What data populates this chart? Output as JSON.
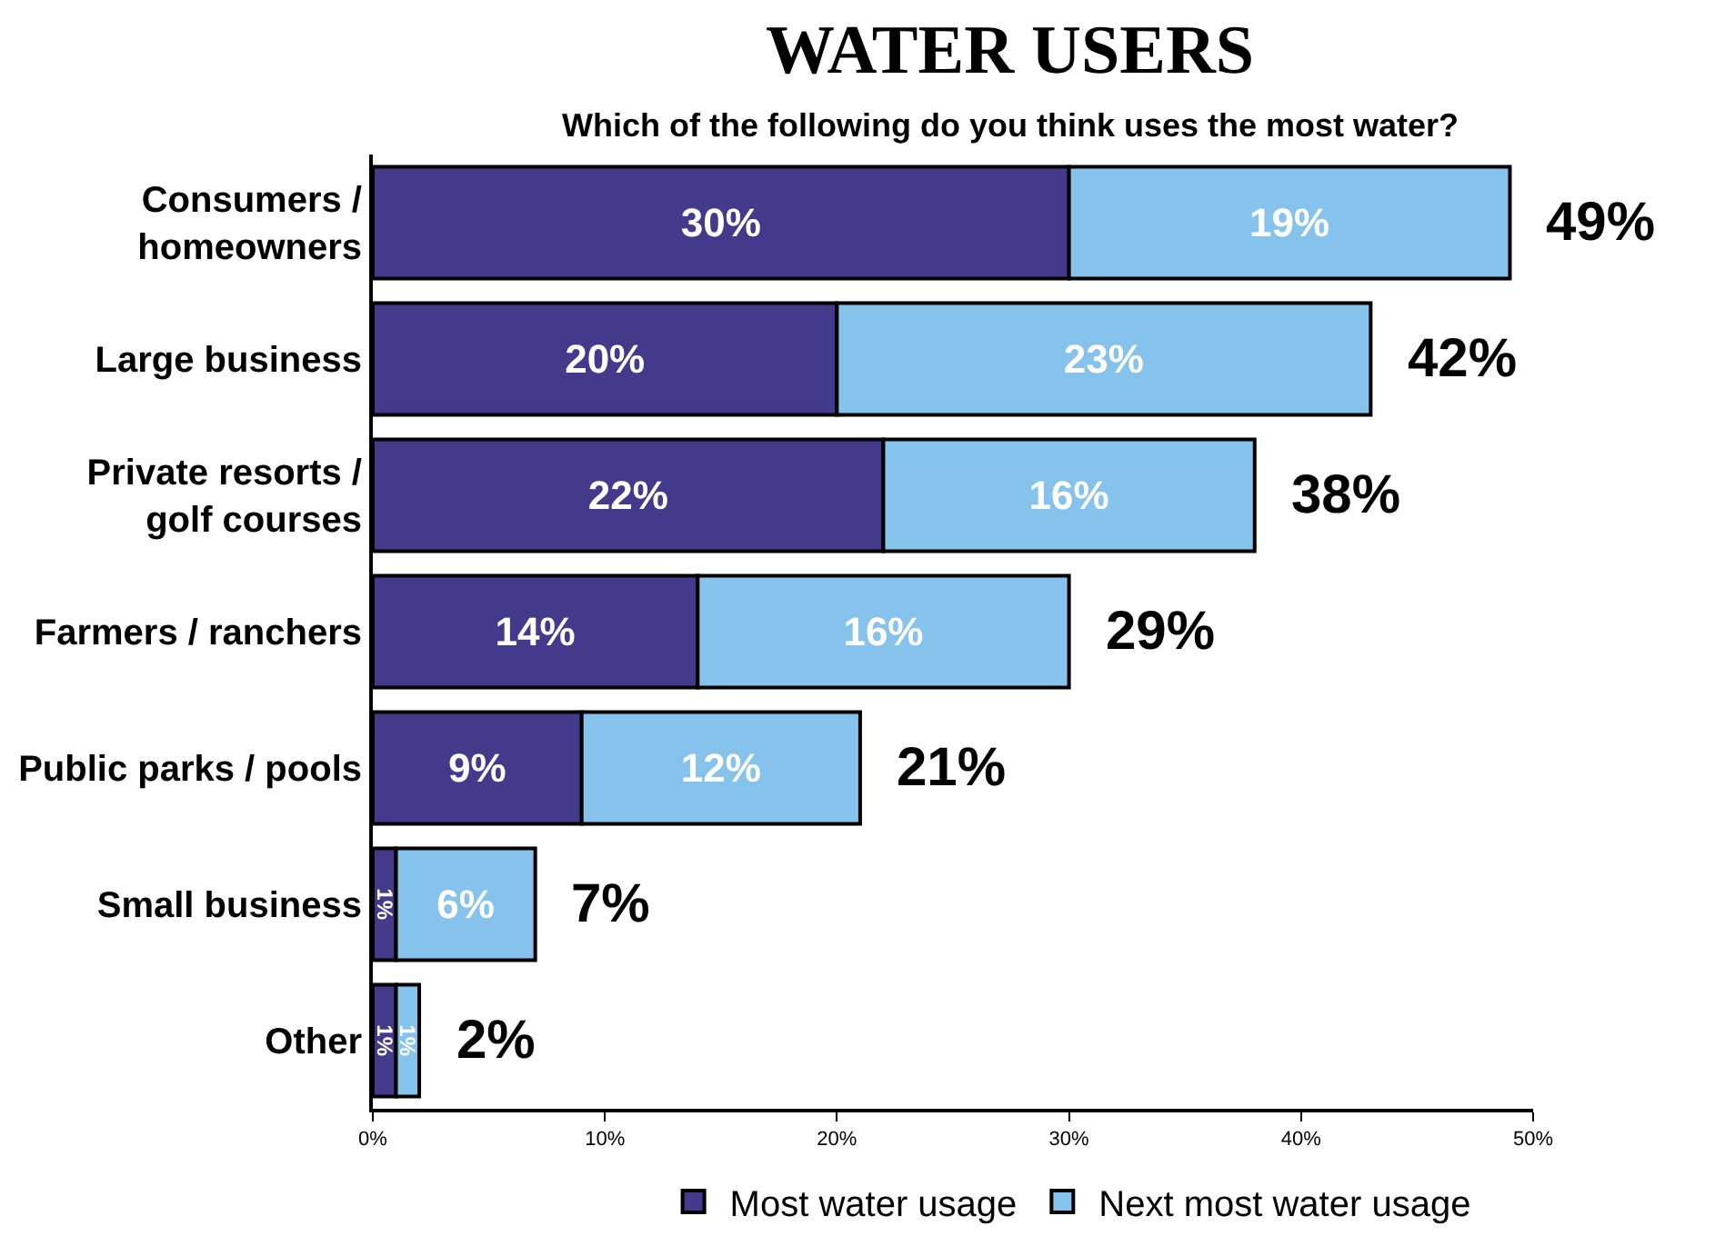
{
  "chart_data": {
    "type": "bar",
    "orientation": "horizontal",
    "stacked": true,
    "title": "WATER USERS",
    "subtitle": "Which of the following do you think uses the most water?",
    "categories": [
      "Consumers /\nhomeowners",
      "Large business",
      "Private resorts /\ngolf courses",
      "Farmers / ranchers",
      "Public parks / pools",
      "Small business",
      "Other"
    ],
    "series": [
      {
        "name": "Most water usage",
        "color": "#433a8c",
        "values": [
          30,
          20,
          22,
          14,
          9,
          1,
          1
        ],
        "value_labels": [
          "30%",
          "20%",
          "22%",
          "14%",
          "9%",
          "1%",
          "1%"
        ]
      },
      {
        "name": "Next most water usage",
        "color": "#86c3ec",
        "values": [
          19,
          23,
          16,
          16,
          12,
          6,
          1
        ],
        "value_labels": [
          "19%",
          "23%",
          "16%",
          "16%",
          "12%",
          "6%",
          "1%"
        ]
      }
    ],
    "totals": [
      "49%",
      "42%",
      "38%",
      "29%",
      "21%",
      "7%",
      "2%"
    ],
    "xlim": [
      0,
      50
    ],
    "xticks": [
      {
        "value": 0,
        "label": "0%"
      },
      {
        "value": 10,
        "label": "10%"
      },
      {
        "value": 20,
        "label": "20%"
      },
      {
        "value": 30,
        "label": "30%"
      },
      {
        "value": 40,
        "label": "40%"
      },
      {
        "value": 50,
        "label": "50%"
      }
    ],
    "grid": false,
    "legend": "bottom"
  }
}
